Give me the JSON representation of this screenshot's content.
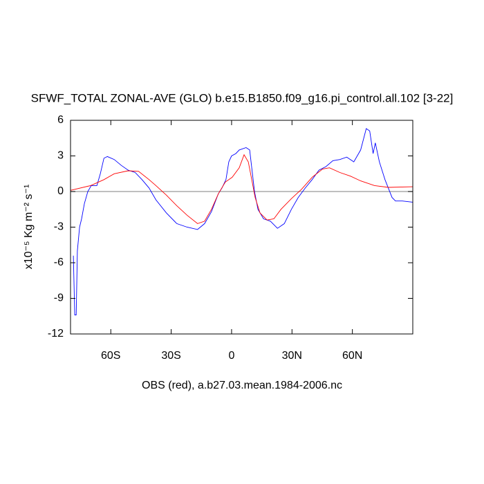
{
  "chart_data": {
    "type": "line",
    "title": "SFWF_TOTAL ZONAL-AVE (GLO) b.e15.B1850.f09_g16.pi_control.all.102 [3-22]",
    "xlabel": "OBS (red), a.b27.03.mean.1984-2006.nc",
    "ylabel": "x10⁻⁵ Kg m⁻² s⁻¹",
    "xlim": [
      -80,
      90
    ],
    "ylim": [
      -12,
      6
    ],
    "xticks": [
      {
        "value": -60,
        "label": "60S"
      },
      {
        "value": -30,
        "label": "30S"
      },
      0,
      {
        "value": 30,
        "label": "30N"
      },
      {
        "value": 60,
        "label": "60N"
      }
    ],
    "yticks": [
      6,
      3,
      0,
      -3,
      -6,
      -9,
      -12
    ],
    "reference_line": 0,
    "series": [
      {
        "color": "#0000ff",
        "x": [
          -78.6,
          -77.9,
          -77.2,
          -76.6,
          -75.5,
          -74.5,
          -73.1,
          -71.4,
          -69.7,
          -66.9,
          -65.2,
          -63.4,
          -61.7,
          -58.3,
          -54.8,
          -51.4,
          -47.9,
          -44.5,
          -41.0,
          -37.6,
          -32.4,
          -27.2,
          -22.1,
          -16.9,
          -13.4,
          -10.0,
          -6.6,
          -4.8,
          -2.8,
          -1.4,
          0,
          2.1,
          3.8,
          7.2,
          9.0,
          10.0,
          11.4,
          13.1,
          15.9,
          19.3,
          22.8,
          26.2,
          29.7,
          33.1,
          36.6,
          40.0,
          43.4,
          46.9,
          50.3,
          53.8,
          57.2,
          60.7,
          64.1,
          66.9,
          68.6,
          70.3,
          71.4,
          73.4,
          76.2,
          79.7,
          81.4,
          84.8,
          90
        ],
        "values": [
          -5.4,
          -10.4,
          -10.4,
          -5.0,
          -3.0,
          -2.3,
          -1.0,
          0.0,
          0.5,
          0.5,
          1.5,
          2.8,
          2.95,
          2.7,
          2.2,
          1.8,
          1.6,
          1.0,
          0.3,
          -0.7,
          -1.8,
          -2.7,
          -3.0,
          -3.2,
          -2.7,
          -1.7,
          -0.2,
          0.3,
          1.0,
          2.5,
          3.0,
          3.2,
          3.5,
          3.7,
          3.5,
          2.0,
          0.0,
          -1.5,
          -2.3,
          -2.5,
          -3.1,
          -2.7,
          -1.5,
          -0.5,
          0.3,
          1.0,
          1.8,
          2.1,
          2.6,
          2.7,
          2.9,
          2.5,
          3.5,
          5.3,
          5.1,
          3.2,
          4.1,
          2.5,
          1.0,
          -0.5,
          -0.8,
          -0.8,
          -0.9
        ]
      },
      {
        "color": "#ff0000",
        "x": [
          -80,
          -70,
          -63.4,
          -58.3,
          -51.4,
          -46.2,
          -41.0,
          -37.6,
          -32.4,
          -27.2,
          -22.1,
          -16.9,
          -13.4,
          -10.0,
          -6.6,
          -3.1,
          0.3,
          3.8,
          6.2,
          8.3,
          10.0,
          11.7,
          14.1,
          17.6,
          21.0,
          24.5,
          29.7,
          34.8,
          40.0,
          45.2,
          48.6,
          53.8,
          59.0,
          64.1,
          71.0,
          77.9,
          90
        ],
        "values": [
          0.1,
          0.5,
          1.0,
          1.5,
          1.75,
          1.7,
          1.0,
          0.5,
          -0.3,
          -1.2,
          -2.0,
          -2.7,
          -2.5,
          -1.5,
          -0.2,
          0.8,
          1.2,
          2.0,
          3.1,
          2.5,
          1.0,
          -0.5,
          -1.8,
          -2.4,
          -2.3,
          -1.5,
          -0.6,
          0.2,
          1.2,
          1.9,
          2.0,
          1.6,
          1.3,
          0.9,
          0.5,
          0.35,
          0.4
        ]
      }
    ]
  }
}
